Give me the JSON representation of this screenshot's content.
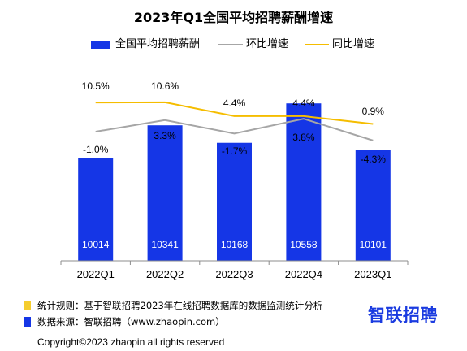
{
  "chart_data": {
    "type": "bar",
    "title": "2023年Q1全国平均招聘薪酬增速",
    "categories": [
      "2022Q1",
      "2022Q2",
      "2022Q3",
      "2022Q4",
      "2023Q1"
    ],
    "series": [
      {
        "name": "全国平均招聘薪酬",
        "type": "bar",
        "values": [
          10014,
          10341,
          10168,
          10558,
          10101
        ],
        "color": "#1536e6"
      },
      {
        "name": "环比增速",
        "type": "line",
        "values": [
          -1.0,
          3.3,
          -1.7,
          3.8,
          -4.3
        ],
        "labels": [
          "-1.0%",
          "3.3%",
          "-1.7%",
          "3.8%",
          "-4.3%"
        ],
        "color": "#a6a6a6"
      },
      {
        "name": "同比增速",
        "type": "line",
        "values": [
          10.5,
          10.6,
          4.4,
          4.4,
          0.9
        ],
        "labels": [
          "10.5%",
          "10.6%",
          "4.4%",
          "4.4%",
          "0.9%"
        ],
        "color": "#f5bd00"
      }
    ],
    "bar_axis_range": [
      9000,
      10600
    ],
    "legend_position": "top",
    "grid": false
  },
  "footer": {
    "rule_label": "统计规则：基于智联招聘2023年在线招聘数据库的数据监测统计分析",
    "source_label": "数据来源：智联招聘（www.zhaopin.com）",
    "rule_color": "#f5cd2e",
    "source_color": "#1536e6",
    "copyright": "Copyright©2023 zhaopin all rights reserved"
  },
  "logo": {
    "text": "智联招聘",
    "color": "#1a3be0"
  }
}
